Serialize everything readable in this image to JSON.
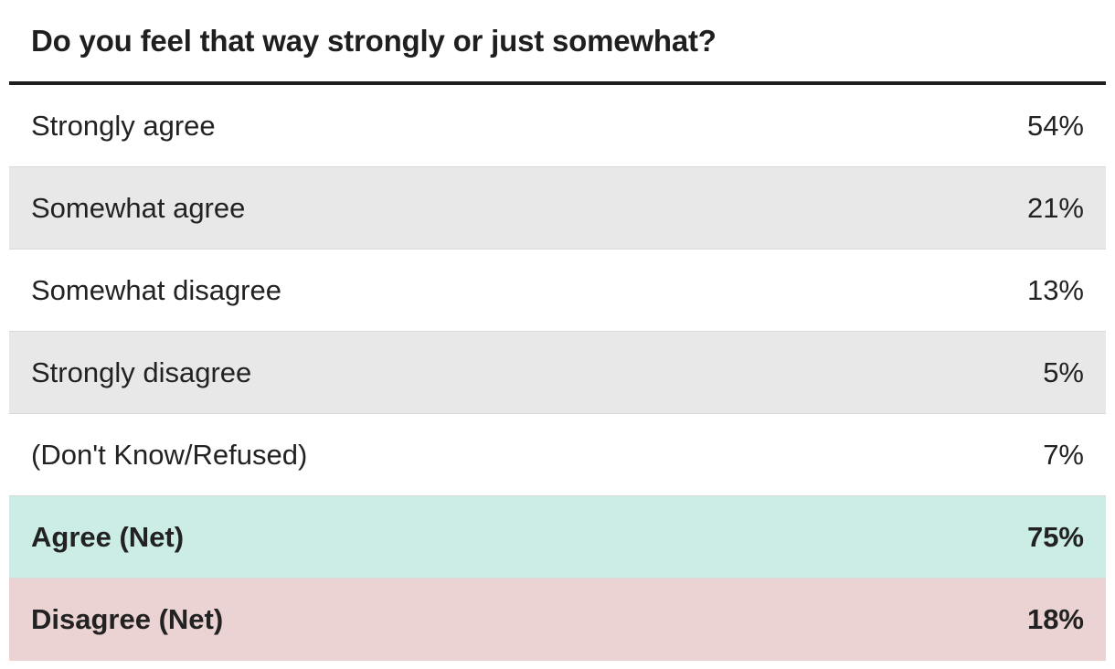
{
  "chart_data": {
    "type": "table",
    "title": "Do you feel that way strongly or just somewhat?",
    "rows": [
      {
        "label": "Strongly agree",
        "value": "54%",
        "numeric": 54,
        "bold": false,
        "background": "#ffffff"
      },
      {
        "label": "Somewhat agree",
        "value": "21%",
        "numeric": 21,
        "bold": false,
        "background": "#e8e8e8"
      },
      {
        "label": "Somewhat disagree",
        "value": "13%",
        "numeric": 13,
        "bold": false,
        "background": "#ffffff"
      },
      {
        "label": "Strongly disagree",
        "value": "5%",
        "numeric": 5,
        "bold": false,
        "background": "#e8e8e8"
      },
      {
        "label": "(Don't Know/Refused)",
        "value": "7%",
        "numeric": 7,
        "bold": false,
        "background": "#ffffff"
      },
      {
        "label": "Agree (Net)",
        "value": "75%",
        "numeric": 75,
        "bold": true,
        "background": "#ccece6"
      },
      {
        "label": "Disagree (Net)",
        "value": "18%",
        "numeric": 18,
        "bold": true,
        "background": "#ebd3d3"
      }
    ]
  },
  "colors": {
    "rule": "#1f1f1f",
    "text": "#222222",
    "stripe": "#e8e8e8",
    "agree_net": "#ccece6",
    "disagree_net": "#ebd3d3"
  }
}
